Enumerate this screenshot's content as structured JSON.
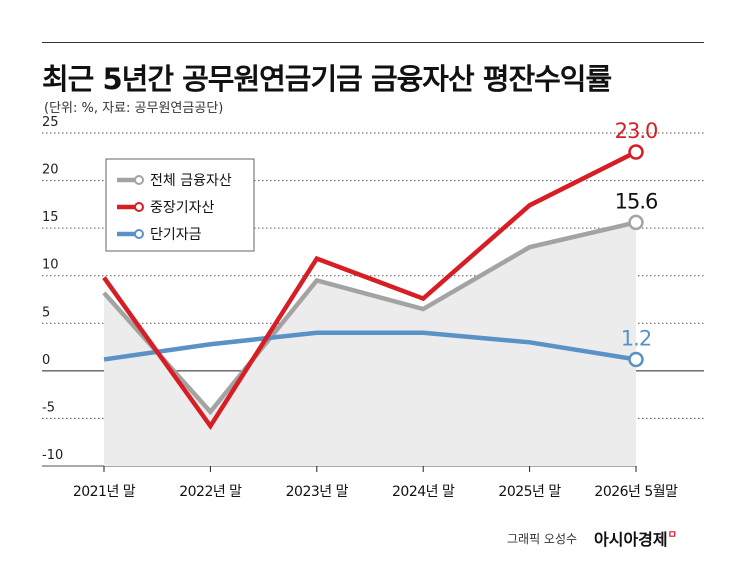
{
  "header": {
    "title": "최근 5년간 공무원연금기금 금융자산 평잔수익률",
    "subtitle": "(단위: %, 자료: 공무원연금공단)"
  },
  "footer": {
    "credit": "그래픽 오성수",
    "logo": "아시아경제",
    "logo_mark": "ㅁ"
  },
  "chart_data": {
    "type": "line",
    "categories": [
      "2021년 말",
      "2022년 말",
      "2023년 말",
      "2024년 말",
      "2025년 말",
      "2026년 5월말"
    ],
    "ylim": [
      -10,
      25
    ],
    "yticks": [
      "25",
      "20",
      "15",
      "10",
      "5",
      "0",
      "-5",
      "-10"
    ],
    "ytick_values": [
      25,
      20,
      15,
      10,
      5,
      0,
      -5,
      -10
    ],
    "grid": true,
    "legend_position": "top-left",
    "series": [
      {
        "name": "전체 금융자산",
        "color": "#a3a3a3",
        "values": [
          8.2,
          -4.3,
          9.5,
          6.5,
          13.0,
          15.6
        ],
        "end_label": "15.6",
        "end_label_color": "#111111"
      },
      {
        "name": "중장기자산",
        "color": "#d81e25",
        "values": [
          9.8,
          -5.8,
          11.8,
          7.6,
          17.4,
          23.0
        ],
        "end_label": "23.0",
        "end_label_color": "#d81e25"
      },
      {
        "name": "단기자금",
        "color": "#5a92c6",
        "values": [
          1.2,
          2.8,
          4.0,
          4.0,
          3.0,
          1.2
        ],
        "end_label": "1.2",
        "end_label_color": "#5a92c6"
      }
    ]
  }
}
